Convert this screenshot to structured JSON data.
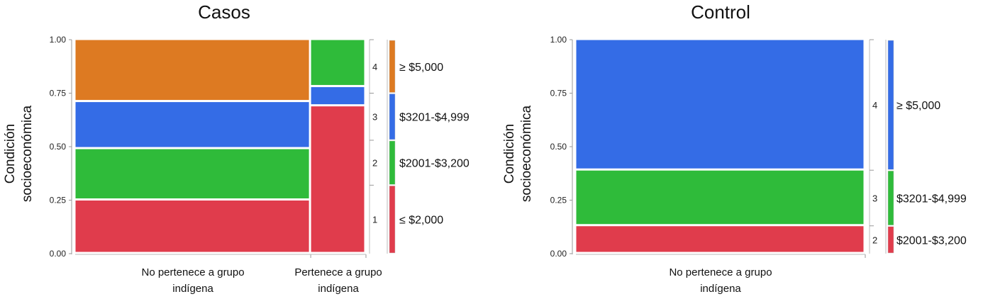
{
  "colors": {
    "level_1": "#e03c4c",
    "level_2": "#2fbb3a",
    "level_3": "#346ce6",
    "level_4": "#dd7a22"
  },
  "chart_data": [
    {
      "type": "mosaic",
      "title": "Casos",
      "ylabel": [
        "Condición",
        "socioeconómica"
      ],
      "ylim": [
        0,
        1
      ],
      "yticks": [
        "0.00",
        "0.25",
        "0.50",
        "0.75",
        "1.00"
      ],
      "columns": [
        {
          "label": [
            "No pertenece a grupo",
            "indígena"
          ],
          "width_fraction": 0.81,
          "segments": [
            {
              "level": 1,
              "value": 0.25
            },
            {
              "level": 2,
              "value": 0.24
            },
            {
              "level": 3,
              "value": 0.22
            },
            {
              "level": 4,
              "value": 0.29
            }
          ]
        },
        {
          "label": [
            "Pertenece  a grupo",
            "indígena"
          ],
          "width_fraction": 0.19,
          "segments": [
            {
              "level": 1,
              "value": 0.69
            },
            {
              "level": 3,
              "value": 0.09
            },
            {
              "level": 2,
              "value": 0.22
            }
          ]
        }
      ],
      "segment_labels": [
        "1",
        "2",
        "3",
        "4"
      ],
      "legend": [
        {
          "level": 1,
          "label": "≤ $2,000",
          "value": 0.32
        },
        {
          "level": 2,
          "label": "$2001-$3,200",
          "value": 0.21
        },
        {
          "level": 3,
          "label": "$3201-$4,999",
          "value": 0.22
        },
        {
          "level": 4,
          "label": "≥ $5,000",
          "value": 0.25
        }
      ]
    },
    {
      "type": "mosaic",
      "title": "Control",
      "ylabel": [
        "Condición",
        "socioeconómica"
      ],
      "ylim": [
        0,
        1
      ],
      "yticks": [
        "0.00",
        "0.25",
        "0.50",
        "0.75",
        "1.00"
      ],
      "columns": [
        {
          "label": [
            "No pertenece a grupo",
            "indígena"
          ],
          "width_fraction": 1.0,
          "segments": [
            {
              "level": 1,
              "value": 0.13
            },
            {
              "level": 2,
              "value": 0.26
            },
            {
              "level": 3,
              "value": 0.61
            }
          ]
        }
      ],
      "segment_labels": [
        "2",
        "3",
        "4"
      ],
      "legend": [
        {
          "level": 1,
          "label": "$2001-$3,200",
          "value": 0.13
        },
        {
          "level": 2,
          "label": "$3201-$4,999",
          "value": 0.26
        },
        {
          "level": 3,
          "label": "≥ $5,000",
          "value": 0.61
        }
      ]
    }
  ]
}
